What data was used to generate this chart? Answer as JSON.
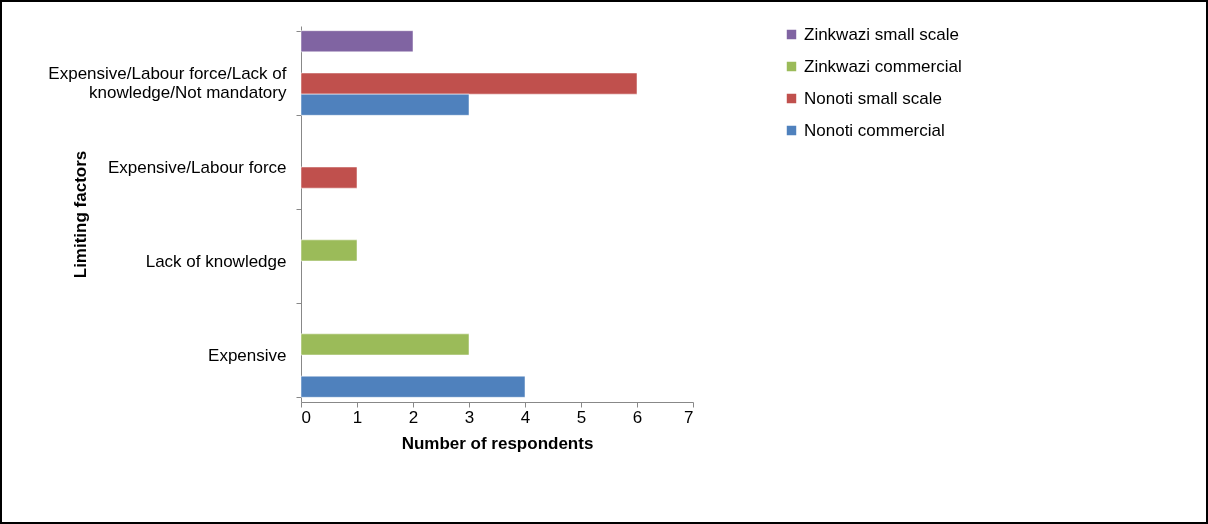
{
  "chart_data": {
    "type": "bar",
    "orientation": "horizontal",
    "xlabel": "Number of respondents",
    "ylabel": "Limiting factors",
    "categories": [
      "Expensive/Labour force/Lack of knowledge/Not mandatory",
      "Expensive/Labour force",
      "Lack of knowledge",
      "Expensive"
    ],
    "series": [
      {
        "name": "Zinkwazi small scale",
        "color": "#8064a2",
        "values": [
          2,
          null,
          null,
          null
        ]
      },
      {
        "name": "Zinkwazi commercial",
        "color": "#9bbb59",
        "values": [
          null,
          null,
          1,
          3
        ]
      },
      {
        "name": "Nonoti small scale",
        "color": "#c0504d",
        "values": [
          6,
          1,
          null,
          null
        ]
      },
      {
        "name": "Nonoti commercial",
        "color": "#4f81bd",
        "values": [
          3,
          null,
          null,
          4
        ]
      }
    ],
    "xlim": [
      0,
      7
    ],
    "xticks": [
      0,
      1,
      2,
      3,
      4,
      5,
      6,
      7
    ],
    "grid": false,
    "legend": "right"
  }
}
